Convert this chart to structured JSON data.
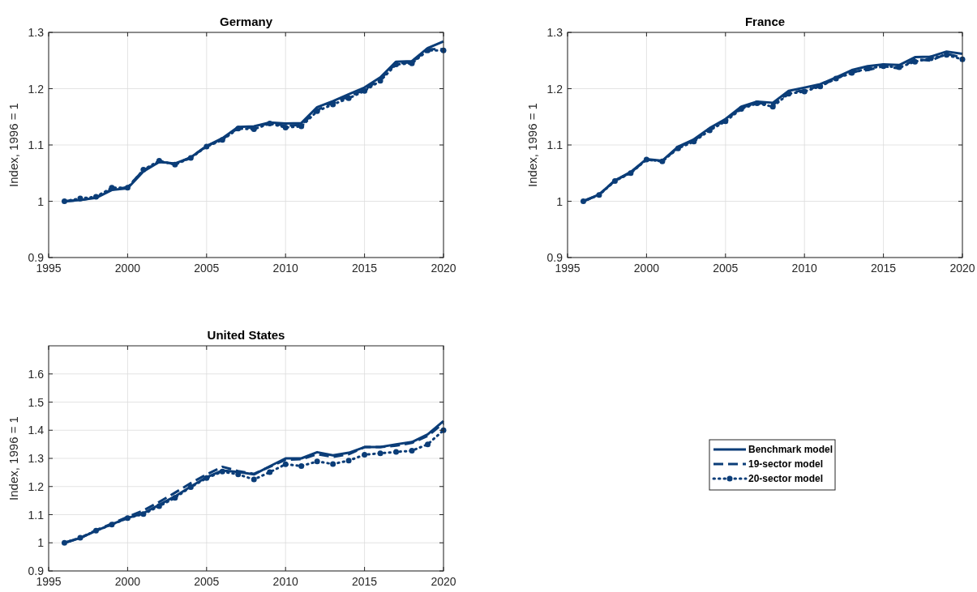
{
  "chart_data": [
    {
      "type": "line",
      "title": "Germany",
      "ylabel": "Index, 1996 = 1",
      "x": [
        1996,
        1997,
        1998,
        1999,
        2000,
        2001,
        2002,
        2003,
        2004,
        2005,
        2006,
        2007,
        2008,
        2009,
        2010,
        2011,
        2012,
        2013,
        2014,
        2015,
        2016,
        2017,
        2018,
        2019,
        2020
      ],
      "xlim": [
        1995,
        2020
      ],
      "xticks": [
        1995,
        2000,
        2005,
        2010,
        2015,
        2020
      ],
      "ylim": [
        0.9,
        1.3
      ],
      "yticks": [
        0.9,
        1,
        1.1,
        1.2,
        1.3
      ],
      "grid": true,
      "legend": false,
      "series": [
        {
          "color": "#0b3d78",
          "line_style": "solid",
          "marker": "none",
          "values": [
            1.0,
            1.002,
            1.006,
            1.02,
            1.023,
            1.053,
            1.07,
            1.067,
            1.078,
            1.098,
            1.112,
            1.132,
            1.133,
            1.14,
            1.138,
            1.139,
            1.167,
            1.178,
            1.19,
            1.202,
            1.22,
            1.248,
            1.249,
            1.272,
            1.284
          ]
        },
        {
          "color": "#0b3d78",
          "line_style": "dashed",
          "marker": "none",
          "values": [
            1.0,
            1.002,
            1.007,
            1.021,
            1.025,
            1.055,
            1.07,
            1.066,
            1.078,
            1.098,
            1.11,
            1.13,
            1.131,
            1.139,
            1.134,
            1.136,
            1.162,
            1.175,
            1.186,
            1.198,
            1.217,
            1.245,
            1.247,
            1.27,
            1.27
          ]
        },
        {
          "color": "#0b3d78",
          "line_style": "dotted",
          "marker": "circle",
          "values": [
            1.0,
            1.005,
            1.008,
            1.024,
            1.024,
            1.056,
            1.072,
            1.065,
            1.077,
            1.097,
            1.109,
            1.129,
            1.128,
            1.138,
            1.131,
            1.133,
            1.16,
            1.172,
            1.183,
            1.196,
            1.214,
            1.243,
            1.245,
            1.268,
            1.268
          ]
        }
      ]
    },
    {
      "type": "line",
      "title": "France",
      "ylabel": "Index, 1996 = 1",
      "x": [
        1996,
        1997,
        1998,
        1999,
        2000,
        2001,
        2002,
        2003,
        2004,
        2005,
        2006,
        2007,
        2008,
        2009,
        2010,
        2011,
        2012,
        2013,
        2014,
        2015,
        2016,
        2017,
        2018,
        2019,
        2020
      ],
      "xlim": [
        1995,
        2020
      ],
      "xticks": [
        1995,
        2000,
        2005,
        2010,
        2015,
        2020
      ],
      "ylim": [
        0.9,
        1.3
      ],
      "yticks": [
        0.9,
        1,
        1.1,
        1.2,
        1.3
      ],
      "grid": true,
      "legend": false,
      "series": [
        {
          "color": "#0b3d78",
          "line_style": "solid",
          "marker": "none",
          "values": [
            1.0,
            1.012,
            1.037,
            1.052,
            1.075,
            1.072,
            1.097,
            1.11,
            1.13,
            1.146,
            1.168,
            1.177,
            1.175,
            1.196,
            1.202,
            1.208,
            1.22,
            1.233,
            1.24,
            1.243,
            1.242,
            1.256,
            1.257,
            1.266,
            1.262
          ]
        },
        {
          "color": "#0b3d78",
          "line_style": "dashed",
          "marker": "none",
          "values": [
            1.0,
            1.012,
            1.037,
            1.051,
            1.074,
            1.071,
            1.096,
            1.108,
            1.128,
            1.144,
            1.166,
            1.175,
            1.171,
            1.193,
            1.197,
            1.205,
            1.218,
            1.23,
            1.233,
            1.24,
            1.236,
            1.252,
            1.25,
            1.262,
            1.255
          ]
        },
        {
          "color": "#0b3d78",
          "line_style": "dotted",
          "marker": "circle",
          "values": [
            1.0,
            1.011,
            1.036,
            1.05,
            1.074,
            1.071,
            1.094,
            1.106,
            1.126,
            1.142,
            1.164,
            1.174,
            1.168,
            1.191,
            1.195,
            1.204,
            1.218,
            1.228,
            1.236,
            1.24,
            1.238,
            1.248,
            1.254,
            1.26,
            1.252
          ]
        }
      ]
    },
    {
      "type": "line",
      "title": "United States",
      "ylabel": "Index, 1996 = 1",
      "x": [
        1996,
        1997,
        1998,
        1999,
        2000,
        2001,
        2002,
        2003,
        2004,
        2005,
        2006,
        2007,
        2008,
        2009,
        2010,
        2011,
        2012,
        2013,
        2014,
        2015,
        2016,
        2017,
        2018,
        2019,
        2020
      ],
      "xlim": [
        1995,
        2020
      ],
      "xticks": [
        1995,
        2000,
        2005,
        2010,
        2015,
        2020
      ],
      "ylim": [
        0.9,
        1.7
      ],
      "yticks": [
        0.9,
        1,
        1.1,
        1.2,
        1.3,
        1.4,
        1.5,
        1.6
      ],
      "grid": true,
      "legend": "right",
      "series": [
        {
          "name": "Benchmark model",
          "color": "#0b3d78",
          "line_style": "solid",
          "marker": "none",
          "values": [
            1.0,
            1.017,
            1.043,
            1.066,
            1.088,
            1.105,
            1.135,
            1.165,
            1.2,
            1.233,
            1.257,
            1.252,
            1.243,
            1.272,
            1.3,
            1.3,
            1.322,
            1.311,
            1.32,
            1.34,
            1.34,
            1.35,
            1.358,
            1.385,
            1.433
          ]
        },
        {
          "name": "19-sector model",
          "color": "#0b3d78",
          "line_style": "dashed",
          "marker": "none",
          "values": [
            1.0,
            1.017,
            1.045,
            1.068,
            1.092,
            1.115,
            1.145,
            1.178,
            1.212,
            1.243,
            1.27,
            1.255,
            1.245,
            1.27,
            1.295,
            1.297,
            1.315,
            1.305,
            1.315,
            1.34,
            1.34,
            1.345,
            1.355,
            1.38,
            1.425
          ]
        },
        {
          "name": "20-sector model",
          "color": "#0b3d78",
          "line_style": "dotted",
          "marker": "circle",
          "values": [
            1.0,
            1.018,
            1.043,
            1.065,
            1.088,
            1.102,
            1.13,
            1.16,
            1.198,
            1.23,
            1.253,
            1.243,
            1.225,
            1.251,
            1.279,
            1.273,
            1.289,
            1.28,
            1.292,
            1.313,
            1.318,
            1.323,
            1.327,
            1.35,
            1.4
          ]
        }
      ]
    }
  ]
}
